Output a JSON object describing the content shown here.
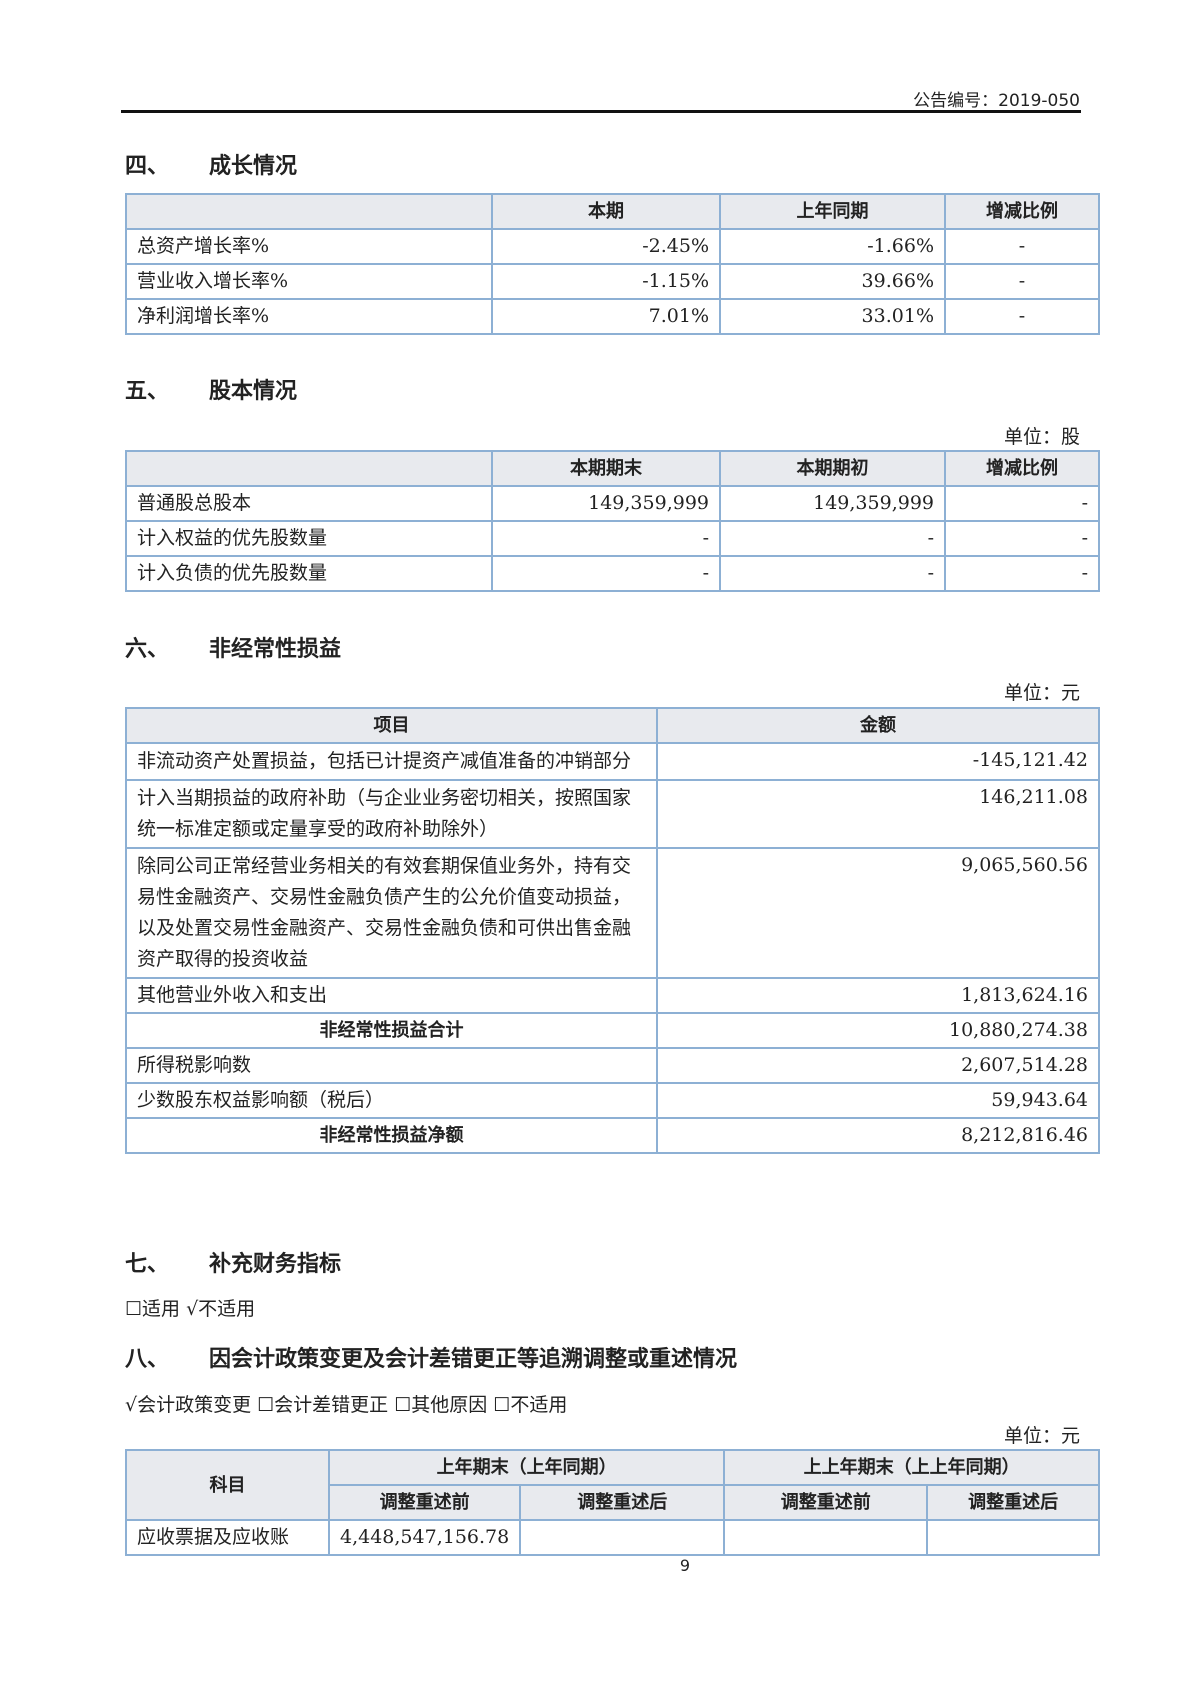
{
  "header": {
    "announcement_no": "公告编号：2019-050"
  },
  "s4": {
    "num": "四、",
    "title": "成长情况",
    "cols": [
      "",
      "本期",
      "上年同期",
      "增减比例"
    ],
    "rows": [
      [
        "总资产增长率%",
        "-2.45%",
        "-1.66%",
        "-"
      ],
      [
        "营业收入增长率%",
        "-1.15%",
        "39.66%",
        "-"
      ],
      [
        "净利润增长率%",
        "7.01%",
        "33.01%",
        "-"
      ]
    ]
  },
  "s5": {
    "num": "五、",
    "title": "股本情况",
    "unit": "单位：股",
    "cols": [
      "",
      "本期期末",
      "本期期初",
      "增减比例"
    ],
    "rows": [
      [
        "普通股总股本",
        "149,359,999",
        "149,359,999",
        "-"
      ],
      [
        "计入权益的优先股数量",
        "-",
        "-",
        "-"
      ],
      [
        "计入负债的优先股数量",
        "-",
        "-",
        "-"
      ]
    ]
  },
  "s6": {
    "num": "六、",
    "title": "非经常性损益",
    "unit": "单位：元",
    "cols": [
      "项目",
      "金额"
    ],
    "rows": [
      [
        "非流动资产处置损益，包括已计提资产减值准备的冲销部分",
        "-145,121.42"
      ],
      [
        "计入当期损益的政府补助（与企业业务密切相关，按照国家统一标准定额或定量享受的政府补助除外）",
        "146,211.08"
      ],
      [
        "除同公司正常经营业务相关的有效套期保值业务外，持有交易性金融资产、交易性金融负债产生的公允价值变动损益，以及处置交易性金融资产、交易性金融负债和可供出售金融资产取得的投资收益",
        "9,065,560.56"
      ],
      [
        "其他营业外收入和支出",
        "1,813,624.16"
      ],
      [
        "非经常性损益合计",
        "10,880,274.38"
      ],
      [
        "所得税影响数",
        "2,607,514.28"
      ],
      [
        "少数股东权益影响额（税后）",
        "59,943.64"
      ],
      [
        "非经常性损益净额",
        "8,212,816.46"
      ]
    ]
  },
  "s7": {
    "num": "七、",
    "title": "补充财务指标",
    "options": "☐适用 √不适用"
  },
  "s8": {
    "num": "八、",
    "title": "因会计政策变更及会计差错更正等追溯调整或重述情况",
    "options": "√会计政策变更 ☐会计差错更正 ☐其他原因 ☐不适用",
    "unit": "单位：元",
    "col_item": "科目",
    "group1": "上年期末（上年同期）",
    "group2": "上上年期末（上上年同期）",
    "sub": [
      "调整重述前",
      "调整重述后",
      "调整重述前",
      "调整重述后"
    ],
    "rows": [
      [
        "应收票据及应收账",
        "4,448,547,156.78",
        "",
        "",
        ""
      ]
    ]
  },
  "page_number": "9"
}
